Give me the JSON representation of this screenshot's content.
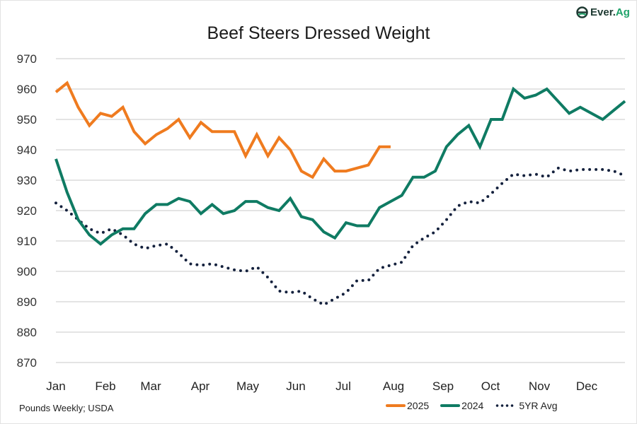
{
  "logo": {
    "text_main": "Ever.",
    "text_accent": "Ag"
  },
  "source_note": "Pounds Weekly; USDA",
  "colors": {
    "s2025": "#ef7b1f",
    "s2024": "#0f7b63",
    "s5yr": "#14213d",
    "grid": "#dcdcdc"
  },
  "chart_data": {
    "type": "line",
    "title": "Beef Steers Dressed Weight",
    "xlabel": "",
    "ylabel": "",
    "ylim": [
      870,
      970
    ],
    "yticks": [
      970,
      960,
      950,
      940,
      930,
      920,
      910,
      900,
      890,
      880,
      870
    ],
    "xticks": [
      "Jan",
      "Feb",
      "Mar",
      "Apr",
      "May",
      "Jun",
      "Jul",
      "Aug",
      "Sep",
      "Oct",
      "Nov",
      "Dec"
    ],
    "x_unit": "week of year (1-52)",
    "grid": true,
    "legend_position": "bottom-right",
    "series": [
      {
        "name": "2025",
        "style": "solid",
        "color": "#ef7b1f",
        "values": [
          959,
          962,
          954,
          948,
          952,
          951,
          954,
          946,
          942,
          945,
          947,
          950,
          944,
          949,
          946,
          946,
          946,
          938,
          945,
          938,
          944,
          940,
          933,
          931,
          937,
          933,
          933,
          934,
          935,
          941,
          941
        ]
      },
      {
        "name": "2024",
        "style": "solid",
        "color": "#0f7b63",
        "values": [
          937,
          926,
          917,
          912,
          909,
          912,
          914,
          914,
          919,
          922,
          922,
          924,
          923,
          919,
          922,
          919,
          920,
          923,
          923,
          921,
          920,
          924,
          918,
          917,
          913,
          911,
          916,
          915,
          915,
          921,
          923,
          925,
          931,
          931,
          933,
          941,
          945,
          948,
          941,
          950,
          950,
          960,
          957,
          958,
          960,
          956,
          952,
          954,
          952,
          950,
          953,
          956
        ]
      },
      {
        "name": "5YR Avg",
        "style": "dotted",
        "color": "#14213d",
        "values": [
          922.5,
          920,
          917,
          914,
          912.5,
          914,
          912,
          909,
          907.5,
          908.5,
          909,
          906,
          902.5,
          902,
          902.5,
          901.5,
          900.5,
          900,
          901.5,
          898,
          893.5,
          893,
          893.5,
          891,
          889,
          891,
          893,
          897,
          897,
          901,
          902,
          903,
          908.5,
          911,
          913,
          917,
          921.5,
          923,
          922.5,
          925.5,
          929,
          932,
          931.5,
          932,
          931,
          934,
          933,
          933.5,
          933.5,
          933.5,
          933,
          931.5
        ]
      }
    ]
  }
}
